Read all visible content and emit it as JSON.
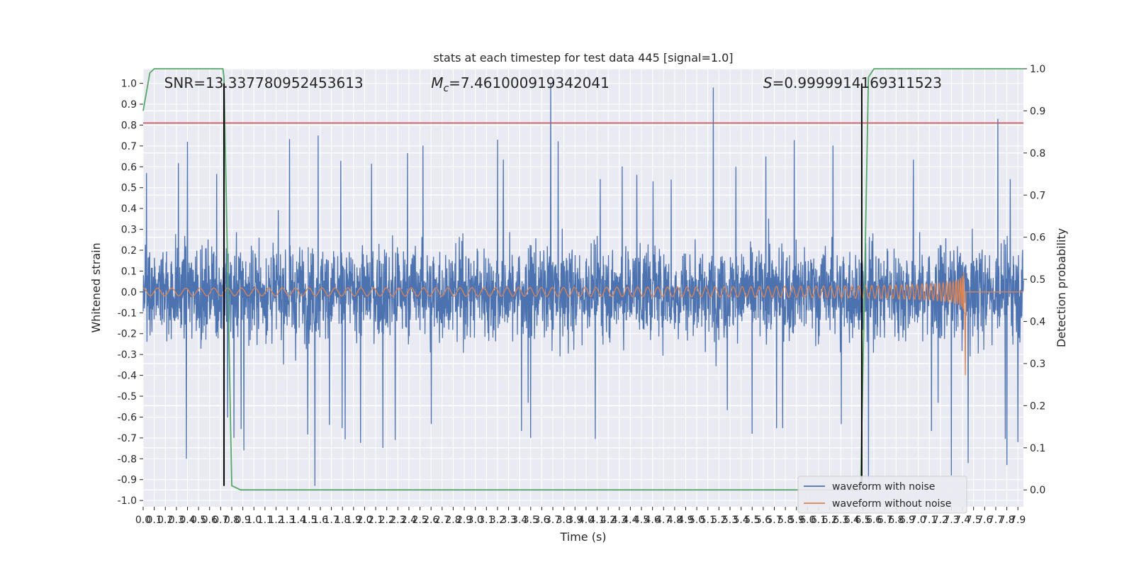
{
  "chart_data": {
    "type": "line",
    "title": "stats at each timestep for test data 445 [signal=1.0]",
    "xlabel": "Time (s)",
    "ylabel": "Whitened strain",
    "y2label": "Detection probability",
    "xlim": [
      0.0,
      7.95
    ],
    "ylim": [
      -1.03,
      1.07
    ],
    "y2lim": [
      -0.04,
      1.0
    ],
    "grid": true,
    "x_ticks": [
      0.0,
      0.1,
      0.2,
      0.3,
      0.4,
      0.5,
      0.6,
      0.7,
      0.8,
      0.9,
      1.0,
      1.1,
      1.2,
      1.3,
      1.4,
      1.5,
      1.6,
      1.7,
      1.8,
      1.9,
      2.0,
      2.1,
      2.2,
      2.3,
      2.4,
      2.5,
      2.6,
      2.7,
      2.8,
      2.9,
      3.0,
      3.1,
      3.2,
      3.3,
      3.4,
      3.5,
      3.6,
      3.7,
      3.8,
      3.9,
      4.0,
      4.1,
      4.2,
      4.3,
      4.4,
      4.5,
      4.6,
      4.7,
      4.8,
      4.9,
      5.0,
      5.1,
      5.2,
      5.3,
      5.4,
      5.5,
      5.6,
      5.7,
      5.8,
      5.9,
      6.0,
      6.1,
      6.2,
      6.3,
      6.4,
      6.5,
      6.6,
      6.7,
      6.8,
      6.9,
      7.0,
      7.1,
      7.2,
      7.3,
      7.4,
      7.5,
      7.6,
      7.7,
      7.8,
      7.9
    ],
    "y_ticks": [
      -1.0,
      -0.9,
      -0.8,
      -0.7,
      -0.6,
      -0.5,
      -0.4,
      -0.3,
      -0.2,
      -0.1,
      0.0,
      0.1,
      0.2,
      0.3,
      0.4,
      0.5,
      0.6,
      0.7,
      0.8,
      0.9,
      1.0
    ],
    "y2_ticks": [
      0.0,
      0.1,
      0.2,
      0.3,
      0.4,
      0.5,
      0.6,
      0.7,
      0.8,
      0.9,
      1.0
    ],
    "annotations": [
      {
        "text": "SNR=13.337780952453613",
        "x": 0.19
      },
      {
        "text": "M_c=7.461000919342041",
        "prefix": "M",
        "sub": "c",
        "suffix": "=7.461000919342041",
        "x": 2.6
      },
      {
        "text": "S=0.9999914169311523",
        "prefix": "S",
        "sub": "",
        "suffix": "=0.9999914169311523",
        "x": 5.6
      }
    ],
    "hlines": [
      {
        "y": 0.81,
        "color": "#c44e52"
      }
    ],
    "vlines": [
      {
        "x": 0.73,
        "y_range": [
          -0.93,
          1.0
        ]
      },
      {
        "x": 6.49,
        "y_range": [
          -0.93,
          1.0
        ]
      }
    ],
    "series": [
      {
        "name": "waveform with noise",
        "axis": "left",
        "color": "#4c72b0",
        "notable_peaks": [
          [
            0.03,
            0.57
          ],
          [
            0.39,
            -0.8
          ],
          [
            0.4,
            0.72
          ],
          [
            0.73,
            0.75
          ],
          [
            0.82,
            -0.7
          ],
          [
            0.91,
            -0.76
          ],
          [
            1.58,
            0.75
          ],
          [
            1.55,
            -0.93
          ],
          [
            3.68,
            1.0
          ],
          [
            3.2,
            0.73
          ],
          [
            3.5,
            -0.7
          ],
          [
            5.15,
            0.98
          ],
          [
            5.5,
            -0.68
          ],
          [
            6.55,
            -0.82
          ],
          [
            6.55,
            -0.9
          ],
          [
            7.3,
            -0.88
          ],
          [
            7.45,
            -0.82
          ],
          [
            7.72,
            0.83
          ],
          [
            7.8,
            -0.83
          ],
          [
            7.9,
            -0.72
          ]
        ],
        "typical_envelope": [
          -0.45,
          0.45
        ]
      },
      {
        "name": "waveform without noise",
        "axis": "left",
        "color": "#dd8452",
        "description_points": [
          [
            0.0,
            0.02
          ],
          [
            3.0,
            0.03
          ],
          [
            5.5,
            0.05
          ],
          [
            6.5,
            0.1
          ],
          [
            7.0,
            0.15
          ],
          [
            7.3,
            0.23
          ],
          [
            7.4,
            0.3
          ],
          [
            7.41,
            -0.4
          ],
          [
            7.42,
            0.0
          ],
          [
            7.95,
            0.0
          ]
        ]
      },
      {
        "name": "detection probability",
        "axis": "right",
        "color": "#55a868",
        "x": [
          0.0,
          0.06,
          0.1,
          0.72,
          0.73,
          0.8,
          0.88,
          6.48,
          6.52,
          6.55,
          6.6,
          7.95
        ],
        "values": [
          0.9,
          0.99,
          1.0,
          1.0,
          0.98,
          0.01,
          0.0,
          0.0,
          0.55,
          0.98,
          1.0,
          1.0
        ]
      }
    ],
    "legend": {
      "position": "lower-right",
      "entries": [
        {
          "label": "waveform with noise",
          "color": "#4c72b0"
        },
        {
          "label": "waveform without noise",
          "color": "#dd8452"
        }
      ]
    }
  }
}
